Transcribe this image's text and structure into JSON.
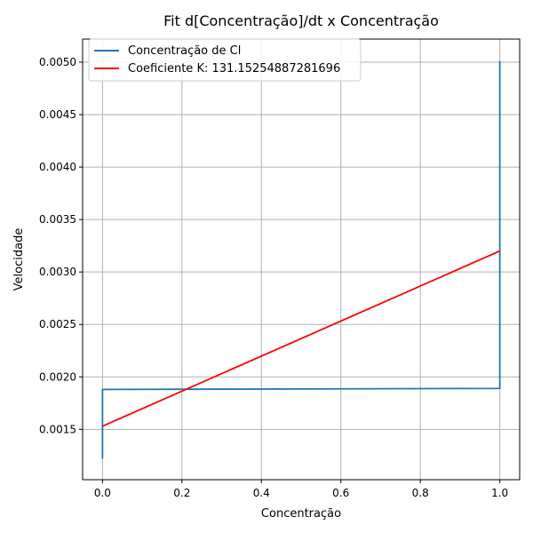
{
  "chart_data": {
    "type": "line",
    "title": "Fit d[Concentração]/dt x Concentração",
    "xlabel": "Concentração",
    "ylabel": "Velocidade",
    "xlim": [
      -0.05,
      1.05
    ],
    "ylim": [
      0.00102,
      0.00522
    ],
    "xticks": [
      0.0,
      0.2,
      0.4,
      0.6,
      0.8,
      1.0
    ],
    "xtick_labels": [
      "0.0",
      "0.2",
      "0.4",
      "0.6",
      "0.8",
      "1.0"
    ],
    "yticks": [
      0.0015,
      0.002,
      0.0025,
      0.003,
      0.0035,
      0.004,
      0.0045,
      0.005
    ],
    "ytick_labels": [
      "0.0015",
      "0.0020",
      "0.0025",
      "0.0030",
      "0.0035",
      "0.0040",
      "0.0045",
      "0.0050"
    ],
    "grid": true,
    "legend_position": "upper-left",
    "series": [
      {
        "name": "Concentração de Cl",
        "color": "#1f77b4",
        "x": [
          0.0,
          0.0,
          1.0,
          1.0
        ],
        "y": [
          0.00122,
          0.00188,
          0.00189,
          0.00501
        ]
      },
      {
        "name": "Coeficiente K: 131.15254887281696",
        "color": "#ff0000",
        "x": [
          0.0,
          1.0
        ],
        "y": [
          0.00153,
          0.0032
        ]
      }
    ]
  }
}
